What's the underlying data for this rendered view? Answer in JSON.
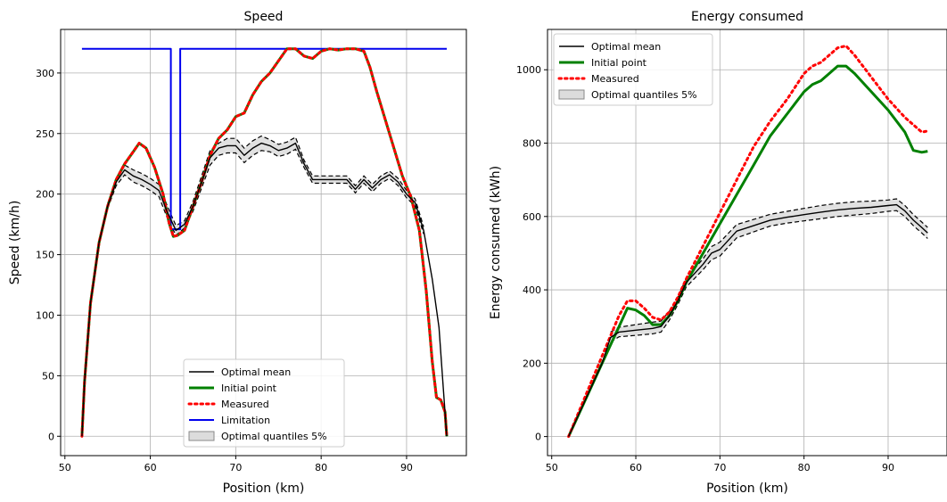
{
  "chart_data": [
    {
      "type": "line",
      "title": "Speed",
      "xlabel": "Position (km)",
      "ylabel": "Speed (km/h)",
      "xlim": [
        49.5,
        97
      ],
      "ylim": [
        -16,
        336
      ],
      "xticks": [
        50,
        60,
        70,
        80,
        90
      ],
      "yticks": [
        0,
        50,
        100,
        150,
        200,
        250,
        300
      ],
      "grid": true,
      "legend_position": "lower-center",
      "legend_entries": [
        "Optimal mean",
        "Initial point",
        "Measured",
        "Limitation",
        "Optimal quantiles 5%"
      ],
      "series": [
        {
          "name": "Limitation",
          "color": "#0000ee",
          "x": [
            52,
            62.4,
            62.4,
            63.5,
            63.5,
            94.7
          ],
          "y": [
            320,
            320,
            171,
            171,
            320,
            320
          ]
        },
        {
          "name": "Initial point",
          "color": "#008000",
          "x": [
            52,
            52.3,
            53,
            54,
            55,
            56,
            57,
            58,
            58.7,
            59.5,
            60.5,
            61.5,
            62.2,
            62.7,
            63.2,
            64,
            65,
            66,
            67,
            68,
            69,
            70,
            71,
            72,
            73,
            74,
            75,
            76,
            77,
            78,
            79,
            80,
            81,
            82,
            83,
            84,
            85,
            85.7,
            86.5,
            88,
            89.5,
            90.5,
            91.5,
            92.3,
            93,
            93.5,
            94,
            94.5,
            94.7
          ],
          "y": [
            0,
            45,
            110,
            160,
            190,
            212,
            225,
            235,
            242,
            238,
            222,
            200,
            176,
            165,
            166,
            170,
            190,
            210,
            232,
            246,
            253,
            264,
            267,
            282,
            293,
            300,
            310,
            320,
            320,
            314,
            312,
            318,
            320,
            319,
            320,
            320,
            318,
            305,
            285,
            250,
            215,
            198,
            170,
            120,
            62,
            32,
            30,
            20,
            0
          ]
        },
        {
          "name": "Measured",
          "color": "#ff0000",
          "x": [
            52,
            52.3,
            53,
            54,
            55,
            56,
            57,
            58,
            58.7,
            59.5,
            60.5,
            61.5,
            62.2,
            62.7,
            63.2,
            64,
            65,
            66,
            67,
            68,
            69,
            70,
            71,
            72,
            73,
            74,
            75,
            76,
            77,
            78,
            79,
            80,
            81,
            82,
            83,
            84,
            85,
            85.7,
            86.5,
            88,
            89.5,
            90.5,
            91.5,
            92.3,
            93,
            93.5,
            94,
            94.5,
            94.7
          ],
          "y": [
            0,
            45,
            110,
            160,
            190,
            212,
            225,
            235,
            242,
            238,
            222,
            200,
            176,
            165,
            166,
            170,
            190,
            210,
            232,
            246,
            253,
            264,
            267,
            282,
            293,
            300,
            310,
            320,
            320,
            314,
            312,
            318,
            320,
            319,
            320,
            320,
            318,
            305,
            285,
            250,
            215,
            198,
            170,
            120,
            62,
            32,
            30,
            20,
            0
          ]
        },
        {
          "name": "Optimal mean",
          "color": "#000000",
          "x": [
            52,
            52.3,
            53,
            54,
            55,
            56,
            57,
            58,
            59,
            60,
            61,
            62,
            63,
            64,
            65,
            66,
            67,
            68,
            69,
            70,
            71,
            72,
            73,
            74,
            75,
            76,
            77,
            78,
            79,
            80,
            81,
            82,
            83,
            84,
            85,
            86,
            87,
            88,
            89,
            90,
            91,
            92,
            93,
            93.8,
            94.3,
            94.7
          ],
          "y": [
            0,
            45,
            110,
            160,
            190,
            210,
            220,
            215,
            212,
            208,
            203,
            185,
            170,
            175,
            190,
            210,
            230,
            238,
            240,
            240,
            232,
            238,
            242,
            240,
            236,
            238,
            242,
            225,
            212,
            212,
            212,
            212,
            212,
            204,
            212,
            205,
            212,
            216,
            210,
            200,
            193,
            170,
            130,
            90,
            40,
            0
          ]
        }
      ],
      "band": {
        "name": "Optimal quantiles 5%",
        "color": "#dcdcdc",
        "x": [
          55,
          56,
          57,
          58,
          59,
          60,
          61,
          62,
          63,
          64,
          65,
          66,
          67,
          68,
          69,
          70,
          71,
          72,
          73,
          74,
          75,
          76,
          77,
          78,
          79,
          80,
          81,
          82,
          83,
          84,
          85,
          86,
          87,
          88,
          89,
          90,
          91,
          92
        ],
        "upper": [
          192,
          213,
          224,
          220,
          217,
          213,
          208,
          190,
          174,
          178,
          194,
          215,
          236,
          242,
          246,
          246,
          238,
          244,
          248,
          245,
          241,
          243,
          247,
          228,
          215,
          215,
          215,
          215,
          215,
          207,
          215,
          208,
          215,
          219,
          213,
          203,
          196,
          173
        ],
        "lower": [
          188,
          207,
          216,
          210,
          207,
          203,
          198,
          180,
          166,
          172,
          186,
          205,
          224,
          232,
          234,
          234,
          226,
          232,
          236,
          235,
          231,
          233,
          237,
          222,
          209,
          209,
          209,
          209,
          209,
          201,
          209,
          202,
          209,
          213,
          207,
          197,
          190,
          167
        ]
      }
    },
    {
      "type": "line",
      "title": "Energy consumed",
      "xlabel": "Position (km)",
      "ylabel": "Energy consumed (kWh)",
      "xlim": [
        49.5,
        97
      ],
      "ylim": [
        -52,
        1110
      ],
      "xticks": [
        50,
        60,
        70,
        80,
        90
      ],
      "yticks": [
        0,
        200,
        400,
        600,
        800,
        1000
      ],
      "grid": true,
      "legend_position": "top-left",
      "legend_entries": [
        "Optimal mean",
        "Initial point",
        "Measured",
        "Optimal quantiles 5%"
      ],
      "series": [
        {
          "name": "Initial point",
          "color": "#008000",
          "x": [
            52,
            54,
            56,
            58,
            59,
            60,
            61,
            62,
            63,
            64,
            65,
            66,
            68,
            70,
            72,
            74,
            76,
            78,
            80,
            81,
            82,
            83,
            84,
            85,
            86,
            88,
            90,
            92,
            93,
            94,
            94.7
          ],
          "y": [
            0,
            100,
            200,
            300,
            350,
            345,
            330,
            305,
            305,
            330,
            370,
            420,
            500,
            580,
            660,
            740,
            820,
            880,
            940,
            960,
            970,
            990,
            1010,
            1010,
            990,
            940,
            890,
            830,
            780,
            775,
            778
          ]
        },
        {
          "name": "Measured",
          "color": "#ff0000",
          "x": [
            52,
            54,
            56,
            58,
            59,
            60,
            61,
            62,
            63,
            64,
            65,
            66,
            68,
            70,
            72,
            74,
            76,
            78,
            80,
            81,
            82,
            83,
            84,
            85,
            86,
            88,
            90,
            92,
            93,
            94,
            94.7
          ],
          "y": [
            0,
            110,
            220,
            330,
            370,
            370,
            350,
            325,
            318,
            340,
            380,
            430,
            520,
            610,
            700,
            790,
            860,
            920,
            990,
            1010,
            1020,
            1040,
            1060,
            1065,
            1040,
            980,
            920,
            870,
            850,
            830,
            833
          ]
        },
        {
          "name": "Optimal mean",
          "color": "#000000",
          "x": [
            52,
            54,
            56,
            57,
            58,
            60,
            62,
            63,
            64,
            65,
            66,
            68,
            69,
            70,
            72,
            74,
            76,
            78,
            80,
            82,
            84,
            86,
            88,
            90,
            91,
            92,
            93,
            94,
            94.7
          ],
          "y": [
            0,
            100,
            200,
            270,
            285,
            290,
            295,
            300,
            330,
            370,
            420,
            470,
            500,
            510,
            560,
            575,
            590,
            598,
            605,
            612,
            618,
            622,
            625,
            630,
            632,
            615,
            590,
            570,
            555
          ]
        }
      ],
      "band": {
        "name": "Optimal quantiles 5%",
        "color": "#dcdcdc",
        "x": [
          57,
          58,
          60,
          62,
          63,
          64,
          65,
          66,
          68,
          69,
          70,
          72,
          74,
          76,
          78,
          80,
          82,
          84,
          86,
          88,
          90,
          91,
          92,
          93,
          94,
          94.7
        ],
        "upper": [
          285,
          298,
          305,
          312,
          315,
          342,
          380,
          432,
          485,
          518,
          530,
          578,
          592,
          606,
          614,
          622,
          630,
          636,
          640,
          642,
          645,
          648,
          630,
          605,
          585,
          570
        ],
        "lower": [
          258,
          272,
          276,
          280,
          285,
          318,
          360,
          408,
          455,
          482,
          492,
          542,
          558,
          574,
          582,
          588,
          594,
          600,
          604,
          608,
          614,
          616,
          600,
          575,
          555,
          540
        ]
      }
    }
  ]
}
